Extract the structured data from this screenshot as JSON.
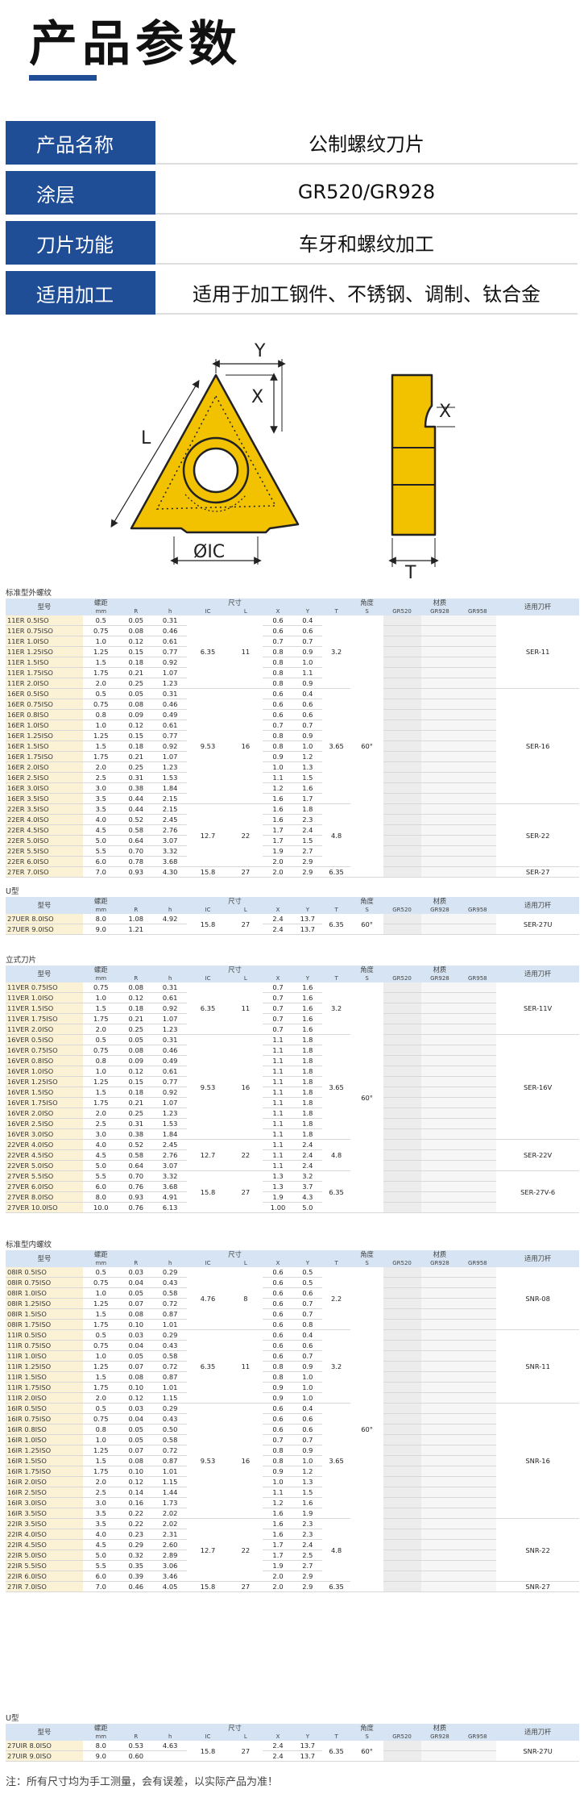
{
  "page_title": "产品参数",
  "info_rows": [
    {
      "key": "产品名称",
      "value": "公制螺纹刀片"
    },
    {
      "key": "涂层",
      "value": "GR520/GR928"
    },
    {
      "key": "刀片功能",
      "value": "车牙和螺纹加工"
    },
    {
      "key": "适用加工",
      "value": "适用于加工钢件、不锈钢、调制、钛合金"
    }
  ],
  "diagram": {
    "label_y": "Y",
    "label_x": "X",
    "label_l": "L",
    "label_ic": "ØIC",
    "label_side_x": "X",
    "label_t": "T"
  },
  "headers": {
    "model": "型号",
    "pitch": "螺距",
    "pitch_unit": "mm",
    "size": "尺寸",
    "angle": "角度",
    "material": "材质",
    "holder": "适用刀杆",
    "R": "R",
    "h": "h",
    "IC": "IC",
    "L": "L",
    "X": "X",
    "Y": "Y",
    "T": "T",
    "S": "S",
    "m1": "GR520",
    "m2": "GR928",
    "m3": "GR958"
  },
  "sections": [
    {
      "title": "标准型外螺纹",
      "angle": "60°",
      "rows": [
        [
          "11ER 0.5ISO",
          "0.5",
          "0.05",
          "0.31",
          "",
          "",
          "0.6",
          "0.4",
          "",
          ""
        ],
        [
          "11ER 0.75ISO",
          "0.75",
          "0.08",
          "0.46",
          "",
          "",
          "0.6",
          "0.6",
          "",
          ""
        ],
        [
          "11ER 1.0ISO",
          "1.0",
          "0.12",
          "0.61",
          "",
          "",
          "0.7",
          "0.7",
          "",
          ""
        ],
        [
          "11ER 1.25ISO",
          "1.25",
          "0.15",
          "0.77",
          "6.35",
          "11",
          "0.8",
          "0.9",
          "3.2",
          "SER-11"
        ],
        [
          "11ER 1.5ISO",
          "1.5",
          "0.18",
          "0.92",
          "",
          "",
          "0.8",
          "1.0",
          "",
          ""
        ],
        [
          "11ER 1.75ISO",
          "1.75",
          "0.21",
          "1.07",
          "",
          "",
          "0.8",
          "1.1",
          "",
          ""
        ],
        [
          "11ER 2.0ISO",
          "2.0",
          "0.25",
          "1.23",
          "",
          "",
          "0.8",
          "0.9",
          "",
          ""
        ],
        [
          "16ER 0.5ISO",
          "0.5",
          "0.05",
          "0.31",
          "",
          "",
          "0.6",
          "0.4",
          "",
          ""
        ],
        [
          "16ER 0.75ISO",
          "0.75",
          "0.08",
          "0.46",
          "",
          "",
          "0.6",
          "0.6",
          "",
          ""
        ],
        [
          "16ER 0.8ISO",
          "0.8",
          "0.09",
          "0.49",
          "",
          "",
          "0.6",
          "0.6",
          "",
          ""
        ],
        [
          "16ER 1.0ISO",
          "1.0",
          "0.12",
          "0.61",
          "",
          "",
          "0.7",
          "0.7",
          "",
          ""
        ],
        [
          "16ER 1.25ISO",
          "1.25",
          "0.15",
          "0.77",
          "",
          "",
          "0.8",
          "0.9",
          "",
          ""
        ],
        [
          "16ER 1.5ISO",
          "1.5",
          "0.18",
          "0.92",
          "9.53",
          "16",
          "0.8",
          "1.0",
          "3.65",
          "SER-16"
        ],
        [
          "16ER 1.75ISO",
          "1.75",
          "0.21",
          "1.07",
          "",
          "",
          "0.9",
          "1.2",
          "",
          ""
        ],
        [
          "16ER 2.0ISO",
          "2.0",
          "0.25",
          "1.23",
          "",
          "",
          "1.0",
          "1.3",
          "",
          ""
        ],
        [
          "16ER 2.5ISO",
          "2.5",
          "0.31",
          "1.53",
          "",
          "",
          "1.1",
          "1.5",
          "",
          ""
        ],
        [
          "16ER 3.0ISO",
          "3.0",
          "0.38",
          "1.84",
          "",
          "",
          "1.2",
          "1.6",
          "",
          ""
        ],
        [
          "16ER 3.5ISO",
          "3.5",
          "0.44",
          "2.15",
          "",
          "",
          "1.6",
          "1.7",
          "",
          ""
        ],
        [
          "22ER 3.5ISO",
          "3.5",
          "0.44",
          "2.15",
          "",
          "",
          "1.6",
          "1.8",
          "",
          ""
        ],
        [
          "22ER 4.0ISO",
          "4.0",
          "0.52",
          "2.45",
          "",
          "",
          "1.6",
          "2.3",
          "",
          ""
        ],
        [
          "22ER 4.5ISO",
          "4.5",
          "0.58",
          "2.76",
          "12.7",
          "22",
          "1.7",
          "2.4",
          "4.8",
          "SER-22"
        ],
        [
          "22ER 5.0ISO",
          "5.0",
          "0.64",
          "3.07",
          "",
          "",
          "1.7",
          "1.5",
          "",
          ""
        ],
        [
          "22ER 5.5ISO",
          "5.5",
          "0.70",
          "3.32",
          "",
          "",
          "1.9",
          "2.7",
          "",
          ""
        ],
        [
          "22ER 6.0ISO",
          "6.0",
          "0.78",
          "3.68",
          "",
          "",
          "2.0",
          "2.9",
          "",
          ""
        ],
        [
          "27ER 7.0ISO",
          "7.0",
          "0.93",
          "4.30",
          "15.8",
          "27",
          "2.0",
          "2.9",
          "6.35",
          "SER-27"
        ]
      ]
    },
    {
      "title": "U型",
      "angle": "60°",
      "rows": [
        [
          "27UER 8.0ISO",
          "8.0",
          "1.08",
          "4.92",
          "15.8",
          "27",
          "2.4",
          "13.7",
          "6.35",
          "SER-27U"
        ],
        [
          "27UER 9.0ISO",
          "9.0",
          "1.21",
          "",
          "15.8",
          "27",
          "2.4",
          "13.7",
          "6.35",
          "SER-27U"
        ]
      ]
    },
    {
      "title": "立式刀片",
      "angle": "60°",
      "rows": [
        [
          "11VER 0.75ISO",
          "0.75",
          "0.08",
          "0.31",
          "",
          "",
          "0.7",
          "1.6",
          "",
          ""
        ],
        [
          "11VER 1.0ISO",
          "1.0",
          "0.12",
          "0.61",
          "",
          "",
          "0.7",
          "1.6",
          "",
          ""
        ],
        [
          "11VER 1.5ISO",
          "1.5",
          "0.18",
          "0.92",
          "6.35",
          "11",
          "0.7",
          "1.6",
          "3.2",
          "SER-11V"
        ],
        [
          "11VER 1.75ISO",
          "1.75",
          "0.21",
          "1.07",
          "",
          "",
          "0.7",
          "1.6",
          "",
          ""
        ],
        [
          "11VER 2.0ISO",
          "2.0",
          "0.25",
          "1.23",
          "",
          "",
          "0.7",
          "1.6",
          "",
          ""
        ],
        [
          "16VER 0.5ISO",
          "0.5",
          "0.05",
          "0.31",
          "",
          "",
          "1.1",
          "1.8",
          "",
          ""
        ],
        [
          "16VER 0.75ISO",
          "0.75",
          "0.08",
          "0.46",
          "",
          "",
          "1.1",
          "1.8",
          "",
          ""
        ],
        [
          "16VER 0.8ISO",
          "0.8",
          "0.09",
          "0.49",
          "",
          "",
          "1.1",
          "1.8",
          "",
          ""
        ],
        [
          "16VER 1.0ISO",
          "1.0",
          "0.12",
          "0.61",
          "",
          "",
          "1.1",
          "1.8",
          "",
          ""
        ],
        [
          "16VER 1.25ISO",
          "1.25",
          "0.15",
          "0.77",
          "9.53",
          "16",
          "1.1",
          "1.8",
          "3.65",
          "SER-16V"
        ],
        [
          "16VER 1.5ISO",
          "1.5",
          "0.18",
          "0.92",
          "",
          "",
          "1.1",
          "1.8",
          "",
          ""
        ],
        [
          "16VER 1.75ISO",
          "1.75",
          "0.21",
          "1.07",
          "",
          "",
          "1.1",
          "1.8",
          "",
          ""
        ],
        [
          "16VER 2.0ISO",
          "2.0",
          "0.25",
          "1.23",
          "",
          "",
          "1.1",
          "1.8",
          "",
          ""
        ],
        [
          "16VER 2.5ISO",
          "2.5",
          "0.31",
          "1.53",
          "",
          "",
          "1.1",
          "1.8",
          "",
          ""
        ],
        [
          "16VER 3.0ISO",
          "3.0",
          "0.38",
          "1.84",
          "",
          "",
          "1.1",
          "1.8",
          "",
          ""
        ],
        [
          "22VER 4.0ISO",
          "4.0",
          "0.52",
          "2.45",
          "",
          "",
          "1.1",
          "2.4",
          "",
          ""
        ],
        [
          "22VER 4.5ISO",
          "4.5",
          "0.58",
          "2.76",
          "12.7",
          "22",
          "1.1",
          "2.4",
          "4.8",
          "SER-22V"
        ],
        [
          "22VER 5.0ISO",
          "5.0",
          "0.64",
          "3.07",
          "",
          "",
          "1.1",
          "2.4",
          "",
          ""
        ],
        [
          "27VER 5.5ISO",
          "5.5",
          "0.70",
          "3.32",
          "",
          "",
          "1.3",
          "3.2",
          "",
          "SER-27V-6"
        ],
        [
          "27VER 6.0ISO",
          "6.0",
          "0.76",
          "3.68",
          "15.8",
          "27",
          "1.3",
          "3.7",
          "6.35",
          ""
        ],
        [
          "27VER 8.0ISO",
          "8.0",
          "0.93",
          "4.91",
          "",
          "",
          "1.9",
          "4.3",
          "8.7",
          "SER-27V-8"
        ],
        [
          "27VER 10.0ISO",
          "10.0",
          "0.76",
          "6.13",
          "",
          "",
          "1.00",
          "5.0",
          "10.0",
          "SER-27V-10"
        ]
      ]
    },
    {
      "title": "标准型内螺纹",
      "angle": "60°",
      "rows": [
        [
          "08IR 0.5ISO",
          "0.5",
          "0.03",
          "0.29",
          "",
          "",
          "0.6",
          "0.5",
          "",
          ""
        ],
        [
          "08IR 0.75ISO",
          "0.75",
          "0.04",
          "0.43",
          "",
          "",
          "0.6",
          "0.5",
          "",
          ""
        ],
        [
          "08IR 1.0ISO",
          "1.0",
          "0.05",
          "0.58",
          "4.76",
          "8",
          "0.6",
          "0.6",
          "2.2",
          "SNR-08"
        ],
        [
          "08IR 1.25ISO",
          "1.25",
          "0.07",
          "0.72",
          "",
          "",
          "0.6",
          "0.7",
          "",
          ""
        ],
        [
          "08IR 1.5ISO",
          "1.5",
          "0.08",
          "0.87",
          "",
          "",
          "0.6",
          "0.7",
          "",
          ""
        ],
        [
          "08IR 1.75ISO",
          "1.75",
          "0.10",
          "1.01",
          "",
          "",
          "0.6",
          "0.8",
          "",
          ""
        ],
        [
          "11IR 0.5ISO",
          "0.5",
          "0.03",
          "0.29",
          "",
          "",
          "0.6",
          "0.4",
          "",
          ""
        ],
        [
          "11IR 0.75ISO",
          "0.75",
          "0.04",
          "0.43",
          "",
          "",
          "0.6",
          "0.6",
          "",
          ""
        ],
        [
          "11IR 1.0ISO",
          "1.0",
          "0.05",
          "0.58",
          "",
          "",
          "0.6",
          "0.7",
          "",
          ""
        ],
        [
          "11IR 1.25ISO",
          "1.25",
          "0.07",
          "0.72",
          "6.35",
          "11",
          "0.8",
          "0.9",
          "3.2",
          "SNR-11"
        ],
        [
          "11IR 1.5ISO",
          "1.5",
          "0.08",
          "0.87",
          "",
          "",
          "0.8",
          "1.0",
          "",
          ""
        ],
        [
          "11IR 1.75ISO",
          "1.75",
          "0.10",
          "1.01",
          "",
          "",
          "0.9",
          "1.0",
          "",
          ""
        ],
        [
          "11IR 2.0ISO",
          "2.0",
          "0.12",
          "1.15",
          "",
          "",
          "0.9",
          "1.0",
          "",
          ""
        ],
        [
          "16IR 0.5ISO",
          "0.5",
          "0.03",
          "0.29",
          "",
          "",
          "0.6",
          "0.4",
          "",
          ""
        ],
        [
          "16IR 0.75ISO",
          "0.75",
          "0.04",
          "0.43",
          "",
          "",
          "0.6",
          "0.6",
          "",
          ""
        ],
        [
          "16IR 0.8ISO",
          "0.8",
          "0.05",
          "0.50",
          "",
          "",
          "0.6",
          "0.6",
          "",
          ""
        ],
        [
          "16IR 1.0ISO",
          "1.0",
          "0.05",
          "0.58",
          "",
          "",
          "0.7",
          "0.7",
          "",
          ""
        ],
        [
          "16IR 1.25ISO",
          "1.25",
          "0.07",
          "0.72",
          "",
          "",
          "0.8",
          "0.9",
          "",
          ""
        ],
        [
          "16IR 1.5ISO",
          "1.5",
          "0.08",
          "0.87",
          "9.53",
          "16",
          "0.8",
          "1.0",
          "3.65",
          "SNR-16"
        ],
        [
          "16IR 1.75ISO",
          "1.75",
          "0.10",
          "1.01",
          "",
          "",
          "0.9",
          "1.2",
          "",
          ""
        ],
        [
          "16IR 2.0ISO",
          "2.0",
          "0.12",
          "1.15",
          "",
          "",
          "1.0",
          "1.3",
          "",
          ""
        ],
        [
          "16IR 2.5ISO",
          "2.5",
          "0.14",
          "1.44",
          "",
          "",
          "1.1",
          "1.5",
          "",
          ""
        ],
        [
          "16IR 3.0ISO",
          "3.0",
          "0.16",
          "1.73",
          "",
          "",
          "1.2",
          "1.6",
          "",
          ""
        ],
        [
          "16IR 3.5ISO",
          "3.5",
          "0.22",
          "2.02",
          "",
          "",
          "1.6",
          "1.9",
          "",
          ""
        ],
        [
          "22IR 3.5ISO",
          "3.5",
          "0.22",
          "2.02",
          "",
          "",
          "1.6",
          "2.3",
          "",
          ""
        ],
        [
          "22IR 4.0ISO",
          "4.0",
          "0.23",
          "2.31",
          "",
          "",
          "1.6",
          "2.3",
          "",
          ""
        ],
        [
          "22IR 4.5ISO",
          "4.5",
          "0.29",
          "2.60",
          "12.7",
          "22",
          "1.7",
          "2.4",
          "4.8",
          "SNR-22"
        ],
        [
          "22IR 5.0ISO",
          "5.0",
          "0.32",
          "2.89",
          "",
          "",
          "1.7",
          "2.5",
          "",
          ""
        ],
        [
          "22IR 5.5ISO",
          "5.5",
          "0.35",
          "3.06",
          "",
          "",
          "1.9",
          "2.7",
          "",
          ""
        ],
        [
          "22IR 6.0ISO",
          "6.0",
          "0.39",
          "3.46",
          "",
          "",
          "2.0",
          "2.9",
          "",
          ""
        ],
        [
          "27IR 7.0ISO",
          "7.0",
          "0.46",
          "4.05",
          "15.8",
          "27",
          "2.0",
          "2.9",
          "6.35",
          "SNR-27"
        ]
      ]
    },
    {
      "title": "U型",
      "angle": "60°",
      "rows": [
        [
          "27UIR 8.0ISO",
          "8.0",
          "0.53",
          "4.63",
          "15.8",
          "27",
          "2.4",
          "13.7",
          "6.35",
          "SNR-27U"
        ],
        [
          "27UIR 9.0ISO",
          "9.0",
          "0.60",
          "",
          "15.8",
          "27",
          "2.4",
          "13.7",
          "6.35",
          "SNR-27U"
        ]
      ]
    }
  ],
  "note": "注：所有尺寸均为手工测量，会有误差，以实际产品为准！",
  "colors": {
    "brand": "#1f4e96",
    "insert": "#f2c200",
    "header_bg": "#d6e4f4",
    "highlight": "#fbf2d6"
  }
}
